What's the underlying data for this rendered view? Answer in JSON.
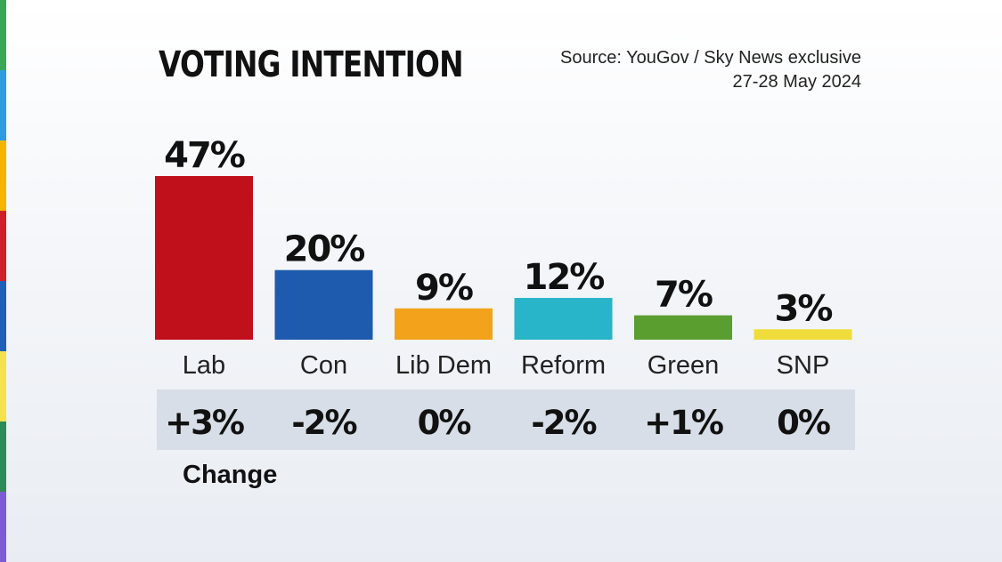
{
  "title": "VOTING INTENTION",
  "source_line1": "Source: YouGov / Sky News exclusive",
  "source_line2": "27-28 May 2024",
  "change_title": "Change",
  "stripe_colors": [
    "#3aa757",
    "#2f9be0",
    "#f4b400",
    "#d01f2b",
    "#1f5fb5",
    "#f5e14a",
    "#2e8b57",
    "#7b5cd6"
  ],
  "chart_data": {
    "type": "bar",
    "categories": [
      "Lab",
      "Con",
      "Lib Dem",
      "Reform",
      "Green",
      "SNP"
    ],
    "values": [
      47,
      20,
      9,
      12,
      7,
      3
    ],
    "value_labels": [
      "47%",
      "20%",
      "9%",
      "12%",
      "7%",
      "3%"
    ],
    "change_labels": [
      "+3%",
      "-2%",
      "0%",
      "-2%",
      "+1%",
      "0%"
    ],
    "colors": [
      "#c0101b",
      "#1e5aad",
      "#f2a31b",
      "#29b5c9",
      "#5a9e2f",
      "#f0dc3a"
    ],
    "unit": "%",
    "ylim": [
      0,
      47
    ],
    "grid": false
  }
}
